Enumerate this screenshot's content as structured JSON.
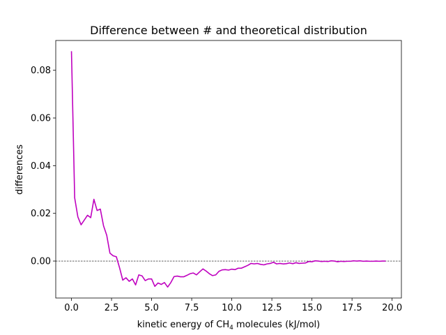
{
  "chart_data": {
    "type": "line",
    "title": "Difference between # and theoretical distribution",
    "xlabel_prefix": "kinetic energy of CH",
    "xlabel_subscript": "4",
    "xlabel_suffix": " molecules (kJ/mol)",
    "ylabel": "differences",
    "xlim": [
      -0.98,
      20.58
    ],
    "ylim": [
      -0.0155,
      0.0925
    ],
    "xticks": [
      0.0,
      2.5,
      5.0,
      7.5,
      10.0,
      12.5,
      15.0,
      17.5,
      20.0
    ],
    "xtick_labels": [
      "0.0",
      "2.5",
      "5.0",
      "7.5",
      "10.0",
      "12.5",
      "15.0",
      "17.5",
      "20.0"
    ],
    "yticks": [
      0.0,
      0.02,
      0.04,
      0.06,
      0.08
    ],
    "ytick_labels": [
      "0.00",
      "0.02",
      "0.04",
      "0.06",
      "0.08"
    ],
    "grid": false,
    "reference_line": {
      "y": 0.0,
      "style": "dashed",
      "color": "#000000"
    },
    "series": [
      {
        "name": "differences",
        "color": "#bf00bf",
        "x": [
          0.0,
          0.2,
          0.4,
          0.6,
          0.8,
          1.0,
          1.2,
          1.4,
          1.6,
          1.8,
          2.0,
          2.2,
          2.4,
          2.6,
          2.8,
          3.0,
          3.2,
          3.4,
          3.6,
          3.8,
          4.0,
          4.2,
          4.4,
          4.6,
          4.8,
          5.0,
          5.2,
          5.4,
          5.6,
          5.8,
          6.0,
          6.2,
          6.4,
          6.6,
          6.8,
          7.0,
          7.2,
          7.4,
          7.6,
          7.8,
          8.0,
          8.2,
          8.4,
          8.6,
          8.8,
          9.0,
          9.2,
          9.4,
          9.6,
          9.8,
          10.0,
          10.2,
          10.4,
          10.6,
          10.8,
          11.0,
          11.2,
          11.4,
          11.6,
          11.8,
          12.0,
          12.2,
          12.4,
          12.6,
          12.8,
          13.0,
          13.2,
          13.4,
          13.6,
          13.8,
          14.0,
          14.2,
          14.4,
          14.6,
          14.8,
          15.0,
          15.2,
          15.4,
          15.6,
          15.8,
          16.0,
          16.2,
          16.4,
          16.6,
          16.8,
          17.0,
          17.2,
          17.4,
          17.6,
          17.8,
          18.0,
          18.2,
          18.4,
          18.6,
          18.8,
          19.0,
          19.2,
          19.4,
          19.6
        ],
        "values": [
          0.088,
          0.0265,
          0.0185,
          0.0152,
          0.0172,
          0.0192,
          0.0182,
          0.0259,
          0.0212,
          0.0218,
          0.0148,
          0.0108,
          0.0033,
          0.0022,
          0.0018,
          -0.0028,
          -0.008,
          -0.007,
          -0.0085,
          -0.0075,
          -0.01,
          -0.0058,
          -0.0062,
          -0.0082,
          -0.0075,
          -0.0075,
          -0.0106,
          -0.0092,
          -0.0098,
          -0.009,
          -0.0109,
          -0.009,
          -0.0065,
          -0.0063,
          -0.0066,
          -0.0066,
          -0.006,
          -0.0053,
          -0.005,
          -0.0058,
          -0.0045,
          -0.0033,
          -0.0042,
          -0.0053,
          -0.0061,
          -0.0058,
          -0.0043,
          -0.0037,
          -0.0036,
          -0.0038,
          -0.0034,
          -0.0036,
          -0.003,
          -0.003,
          -0.0024,
          -0.0018,
          -0.001,
          -0.0012,
          -0.001,
          -0.0014,
          -0.0016,
          -0.0012,
          -0.001,
          -0.0005,
          -0.0012,
          -0.001,
          -0.0012,
          -0.0011,
          -0.0008,
          -0.0011,
          -0.0007,
          -0.001,
          -0.0009,
          -0.0008,
          -0.0002,
          -0.0003,
          0.0001,
          0.0,
          -0.0002,
          -0.0001,
          -0.0002,
          0.0001,
          0.0,
          -0.0003,
          -0.0001,
          -0.0002,
          -0.0001,
          -0.0001,
          0.0001,
          0.0,
          0.0001,
          -0.0001,
          0.0,
          -0.0001,
          -0.0001,
          0.0,
          -0.0001,
          0.0,
          0.0
        ]
      }
    ]
  }
}
